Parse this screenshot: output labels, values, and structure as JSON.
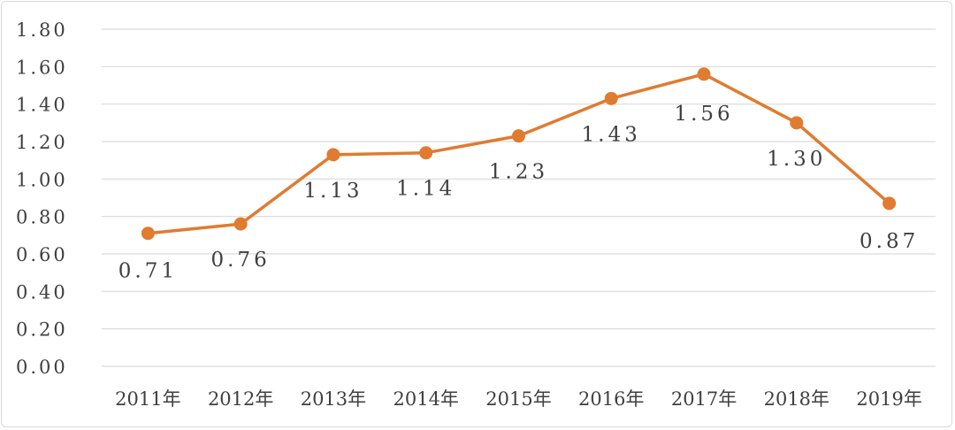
{
  "chart_data": {
    "type": "line",
    "title": "",
    "xlabel": "",
    "ylabel": "",
    "categories": [
      "2011年",
      "2012年",
      "2013年",
      "2014年",
      "2015年",
      "2016年",
      "2017年",
      "2018年",
      "2019年"
    ],
    "series": [
      {
        "values": [
          0.71,
          0.76,
          1.13,
          1.14,
          1.23,
          1.43,
          1.56,
          1.3,
          0.87
        ],
        "value_labels": [
          "0.71",
          "0.76",
          "1.13",
          "1.14",
          "1.23",
          "1.43",
          "1.56",
          "1.30",
          "0.87"
        ],
        "color": "#e07b30",
        "marker": "circle"
      }
    ],
    "ylim": [
      0,
      1.8
    ],
    "y_ticks": [
      "0.00",
      "0.20",
      "0.40",
      "0.60",
      "0.80",
      "1.00",
      "1.20",
      "1.40",
      "1.60",
      "1.80"
    ],
    "grid": true,
    "legend": "none",
    "colors": {
      "grid": "#d9d9d9",
      "text": "#3f3f3f"
    }
  }
}
